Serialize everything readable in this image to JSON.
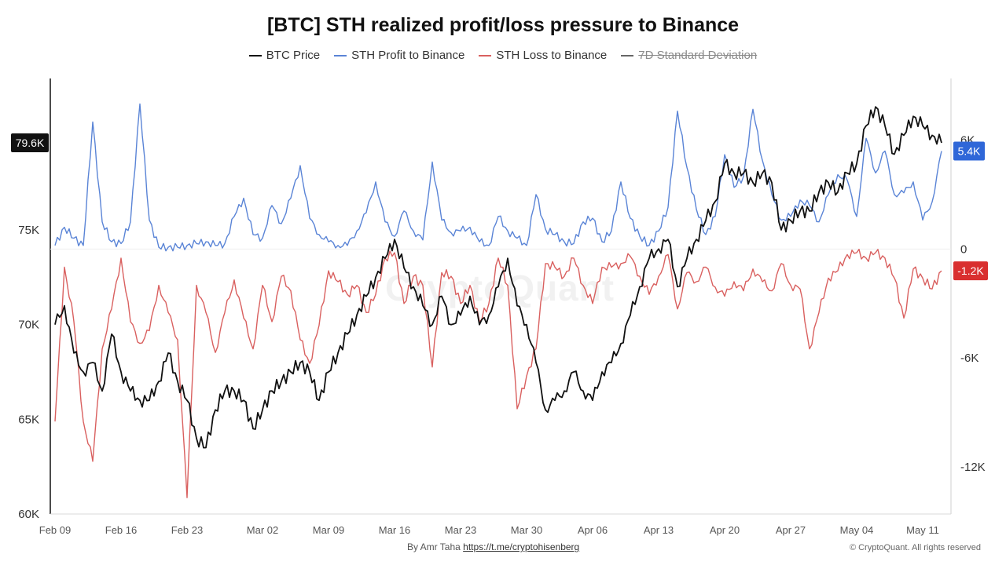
{
  "chart_data": {
    "type": "line",
    "title": "[BTC] STH realized profit/loss pressure to Binance",
    "legend_placement": "top-center",
    "legend": [
      {
        "key": "price",
        "label": "BTC Price",
        "color": "#111111",
        "enabled": true
      },
      {
        "key": "profit",
        "label": "STH Profit to Binance",
        "color": "#5a84d6",
        "enabled": true
      },
      {
        "key": "loss",
        "label": "STH Loss to Binance",
        "color": "#d9605f",
        "enabled": true
      },
      {
        "key": "std",
        "label": "7D Standard Deviation",
        "color": "#666666",
        "enabled": false
      }
    ],
    "x_range": [
      "2024-02-09",
      "2024-05-13"
    ],
    "x_ticks": [
      "Feb 09",
      "Feb 16",
      "Feb 23",
      "Mar 02",
      "Mar 09",
      "Mar 16",
      "Mar 23",
      "Mar 30",
      "Apr 06",
      "Apr 13",
      "Apr 20",
      "Apr 27",
      "May 04",
      "May 11"
    ],
    "y_left": {
      "min": 60000,
      "max": 83000,
      "ticks": [
        {
          "v": 60000,
          "label": "60K"
        },
        {
          "v": 65000,
          "label": "65K"
        },
        {
          "v": 70000,
          "label": "70K"
        },
        {
          "v": 75000,
          "label": "75K"
        }
      ]
    },
    "y_right": {
      "min": -14600,
      "max": 9400,
      "ticks": [
        {
          "v": 6000,
          "label": "6K"
        },
        {
          "v": 0,
          "label": "0"
        },
        {
          "v": -6000,
          "label": "-6K"
        },
        {
          "v": -12000,
          "label": "-12K"
        }
      ]
    },
    "grid": false,
    "badges": {
      "price": {
        "label": "79.6K",
        "value": 79600,
        "color": "#111111"
      },
      "profit": {
        "label": "5.4K",
        "value": 5400,
        "color": "#2f67d8"
      },
      "loss": {
        "label": "-1.2K",
        "value": -1200,
        "color": "#d92f2f"
      }
    },
    "series": [
      {
        "name": "BTC Price",
        "key": "price",
        "axis": "left",
        "color": "#111111",
        "x": [
          "2024-02-09",
          "2024-02-10",
          "2024-02-11",
          "2024-02-12",
          "2024-02-13",
          "2024-02-14",
          "2024-02-15",
          "2024-02-16",
          "2024-02-17",
          "2024-02-18",
          "2024-02-19",
          "2024-02-20",
          "2024-02-21",
          "2024-02-22",
          "2024-02-23",
          "2024-02-24",
          "2024-02-25",
          "2024-02-26",
          "2024-02-27",
          "2024-02-28",
          "2024-02-29",
          "2024-03-01",
          "2024-03-02",
          "2024-03-03",
          "2024-03-04",
          "2024-03-05",
          "2024-03-06",
          "2024-03-07",
          "2024-03-08",
          "2024-03-09",
          "2024-03-10",
          "2024-03-11",
          "2024-03-12",
          "2024-03-13",
          "2024-03-14",
          "2024-03-15",
          "2024-03-16",
          "2024-03-17",
          "2024-03-18",
          "2024-03-19",
          "2024-03-20",
          "2024-03-21",
          "2024-03-22",
          "2024-03-23",
          "2024-03-24",
          "2024-03-25",
          "2024-03-26",
          "2024-03-27",
          "2024-03-28",
          "2024-03-29",
          "2024-03-30",
          "2024-03-31",
          "2024-04-01",
          "2024-04-02",
          "2024-04-03",
          "2024-04-04",
          "2024-04-05",
          "2024-04-06",
          "2024-04-07",
          "2024-04-08",
          "2024-04-09",
          "2024-04-10",
          "2024-04-11",
          "2024-04-12",
          "2024-04-13",
          "2024-04-14",
          "2024-04-15",
          "2024-04-16",
          "2024-04-17",
          "2024-04-18",
          "2024-04-19",
          "2024-04-20",
          "2024-04-21",
          "2024-04-22",
          "2024-04-23",
          "2024-04-24",
          "2024-04-25",
          "2024-04-26",
          "2024-04-27",
          "2024-04-28",
          "2024-04-29",
          "2024-04-30",
          "2024-05-01",
          "2024-05-02",
          "2024-05-03",
          "2024-05-04",
          "2024-05-05",
          "2024-05-06",
          "2024-05-07",
          "2024-05-08",
          "2024-05-09",
          "2024-05-10",
          "2024-05-11",
          "2024-05-12",
          "2024-05-13"
        ],
        "values": [
          70000,
          71000,
          68500,
          67500,
          68000,
          66500,
          69500,
          67500,
          66500,
          66000,
          66000,
          67000,
          68500,
          67000,
          66000,
          64000,
          63500,
          65500,
          66500,
          66500,
          66000,
          64500,
          65500,
          66500,
          67000,
          67500,
          68000,
          67500,
          66000,
          67500,
          68500,
          69500,
          70500,
          71500,
          72500,
          73500,
          74500,
          73000,
          72000,
          71000,
          70000,
          71500,
          70000,
          70500,
          71500,
          70000,
          70500,
          72000,
          73500,
          71000,
          70000,
          68000,
          65500,
          66000,
          66500,
          67500,
          66500,
          66000,
          67500,
          68000,
          69000,
          70500,
          72000,
          73500,
          74000,
          74500,
          72000,
          73500,
          74500,
          75500,
          76500,
          78500,
          78000,
          78000,
          77500,
          78000,
          77500,
          75000,
          75500,
          76000,
          76000,
          77000,
          77500,
          77000,
          78000,
          78500,
          80500,
          81500,
          80500,
          79000,
          80000,
          81000,
          80500,
          80000,
          79600
        ]
      },
      {
        "name": "STH Profit to Binance",
        "key": "profit",
        "axis": "right",
        "color": "#5a84d6",
        "x": [
          "2024-02-09",
          "2024-02-10",
          "2024-02-11",
          "2024-02-12",
          "2024-02-13",
          "2024-02-14",
          "2024-02-15",
          "2024-02-16",
          "2024-02-17",
          "2024-02-18",
          "2024-02-19",
          "2024-02-20",
          "2024-02-21",
          "2024-02-22",
          "2024-02-23",
          "2024-02-24",
          "2024-02-25",
          "2024-02-26",
          "2024-02-27",
          "2024-02-28",
          "2024-02-29",
          "2024-03-01",
          "2024-03-02",
          "2024-03-03",
          "2024-03-04",
          "2024-03-05",
          "2024-03-06",
          "2024-03-07",
          "2024-03-08",
          "2024-03-09",
          "2024-03-10",
          "2024-03-11",
          "2024-03-12",
          "2024-03-13",
          "2024-03-14",
          "2024-03-15",
          "2024-03-16",
          "2024-03-17",
          "2024-03-18",
          "2024-03-19",
          "2024-03-20",
          "2024-03-21",
          "2024-03-22",
          "2024-03-23",
          "2024-03-24",
          "2024-03-25",
          "2024-03-26",
          "2024-03-27",
          "2024-03-28",
          "2024-03-29",
          "2024-03-30",
          "2024-03-31",
          "2024-04-01",
          "2024-04-02",
          "2024-04-03",
          "2024-04-04",
          "2024-04-05",
          "2024-04-06",
          "2024-04-07",
          "2024-04-08",
          "2024-04-09",
          "2024-04-10",
          "2024-04-11",
          "2024-04-12",
          "2024-04-13",
          "2024-04-14",
          "2024-04-15",
          "2024-04-16",
          "2024-04-17",
          "2024-04-18",
          "2024-04-19",
          "2024-04-20",
          "2024-04-21",
          "2024-04-22",
          "2024-04-23",
          "2024-04-24",
          "2024-04-25",
          "2024-04-26",
          "2024-04-27",
          "2024-04-28",
          "2024-04-29",
          "2024-04-30",
          "2024-05-01",
          "2024-05-02",
          "2024-05-03",
          "2024-05-04",
          "2024-05-05",
          "2024-05-06",
          "2024-05-07",
          "2024-05-08",
          "2024-05-09",
          "2024-05-10",
          "2024-05-11",
          "2024-05-12",
          "2024-05-13"
        ],
        "values": [
          200,
          1200,
          600,
          200,
          7000,
          1500,
          400,
          300,
          1500,
          8000,
          1600,
          100,
          100,
          100,
          200,
          300,
          400,
          200,
          300,
          1800,
          2800,
          800,
          600,
          2400,
          1400,
          2800,
          4600,
          1700,
          800,
          400,
          200,
          200,
          1000,
          2000,
          3700,
          1500,
          700,
          2100,
          1000,
          500,
          4800,
          1600,
          900,
          1000,
          1200,
          400,
          200,
          1800,
          1000,
          600,
          200,
          3000,
          1100,
          800,
          400,
          300,
          1500,
          1700,
          400,
          1000,
          3700,
          1700,
          700,
          200,
          1000,
          2300,
          7600,
          4500,
          2200,
          800,
          1800,
          5200,
          3400,
          4000,
          7700,
          4900,
          3000,
          1600,
          1800,
          2700,
          2400,
          1500,
          3000,
          4100,
          3800,
          1800,
          6100,
          4200,
          5400,
          3000,
          3100,
          3700,
          1600,
          2600,
          5400
        ]
      },
      {
        "name": "STH Loss to Binance",
        "key": "loss",
        "axis": "right",
        "color": "#d9605f",
        "x": [
          "2024-02-09",
          "2024-02-10",
          "2024-02-11",
          "2024-02-12",
          "2024-02-13",
          "2024-02-14",
          "2024-02-15",
          "2024-02-16",
          "2024-02-17",
          "2024-02-18",
          "2024-02-19",
          "2024-02-20",
          "2024-02-21",
          "2024-02-22",
          "2024-02-23",
          "2024-02-24",
          "2024-02-25",
          "2024-02-26",
          "2024-02-27",
          "2024-02-28",
          "2024-02-29",
          "2024-03-01",
          "2024-03-02",
          "2024-03-03",
          "2024-03-04",
          "2024-03-05",
          "2024-03-06",
          "2024-03-07",
          "2024-03-08",
          "2024-03-09",
          "2024-03-10",
          "2024-03-11",
          "2024-03-12",
          "2024-03-13",
          "2024-03-14",
          "2024-03-15",
          "2024-03-16",
          "2024-03-17",
          "2024-03-18",
          "2024-03-19",
          "2024-03-20",
          "2024-03-21",
          "2024-03-22",
          "2024-03-23",
          "2024-03-24",
          "2024-03-25",
          "2024-03-26",
          "2024-03-27",
          "2024-03-28",
          "2024-03-29",
          "2024-03-30",
          "2024-03-31",
          "2024-04-01",
          "2024-04-02",
          "2024-04-03",
          "2024-04-04",
          "2024-04-05",
          "2024-04-06",
          "2024-04-07",
          "2024-04-08",
          "2024-04-09",
          "2024-04-10",
          "2024-04-11",
          "2024-04-12",
          "2024-04-13",
          "2024-04-14",
          "2024-04-15",
          "2024-04-16",
          "2024-04-17",
          "2024-04-18",
          "2024-04-19",
          "2024-04-20",
          "2024-04-21",
          "2024-04-22",
          "2024-04-23",
          "2024-04-24",
          "2024-04-25",
          "2024-04-26",
          "2024-04-27",
          "2024-04-28",
          "2024-04-29",
          "2024-04-30",
          "2024-05-01",
          "2024-05-02",
          "2024-05-03",
          "2024-05-04",
          "2024-05-05",
          "2024-05-06",
          "2024-05-07",
          "2024-05-08",
          "2024-05-09",
          "2024-05-10",
          "2024-05-11",
          "2024-05-12",
          "2024-05-13"
        ],
        "values": [
          -9500,
          -1000,
          -4000,
          -9500,
          -11700,
          -5500,
          -3300,
          -500,
          -4000,
          -5200,
          -4500,
          -2000,
          -3500,
          -5000,
          -13700,
          -2000,
          -3500,
          -5700,
          -3500,
          -1700,
          -3800,
          -5500,
          -2000,
          -4000,
          -1500,
          -2300,
          -5000,
          -6300,
          -4200,
          -1200,
          -1800,
          -2500,
          -2000,
          -3500,
          -2500,
          -500,
          -200,
          -3000,
          -1500,
          -2000,
          -6500,
          -1300,
          -1500,
          -3000,
          -2000,
          -4000,
          -3000,
          -500,
          -2000,
          -8800,
          -7000,
          -5500,
          -800,
          -1000,
          -1500,
          -500,
          -2000,
          -3000,
          -1000,
          -1000,
          -800,
          -400,
          -1500,
          -2500,
          -1500,
          -300,
          -3300,
          -1300,
          -1800,
          -1000,
          -2100,
          -2600,
          -1800,
          -2300,
          -1100,
          -1800,
          -2300,
          -800,
          -2000,
          -2200,
          -5500,
          -3500,
          -1600,
          -1200,
          -300,
          -200,
          -500,
          -200,
          -500,
          -1600,
          -3800,
          -1100,
          -1600,
          -2200,
          -1200
        ]
      }
    ]
  },
  "footer": {
    "by_text": "By Amr Taha",
    "link_text": "https://t.me/cryptohisenberg",
    "copyright": "© CryptoQuant. All rights reserved"
  },
  "watermark": "CryptoQuant"
}
